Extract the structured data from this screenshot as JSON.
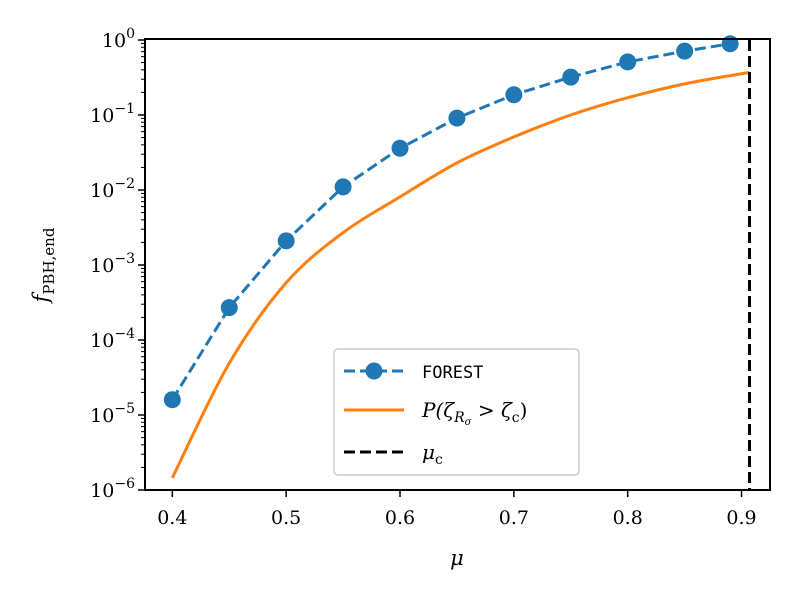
{
  "chart_data": {
    "type": "line",
    "title": "",
    "xlabel": "μ",
    "ylabel": {
      "base": "f",
      "sub": "PBH,end"
    },
    "xlim": [
      0.376,
      0.925
    ],
    "ylim_log10": [
      -6,
      0
    ],
    "yscale": "log",
    "x_ticks": [
      0.4,
      0.5,
      0.6,
      0.7,
      0.8,
      0.9
    ],
    "x_tick_labels": [
      "0.4",
      "0.5",
      "0.6",
      "0.7",
      "0.8",
      "0.9"
    ],
    "y_ticks": [
      {
        "base": "10",
        "exp": "0",
        "log": 0
      },
      {
        "base": "10",
        "exp": "−1",
        "log": -1
      },
      {
        "base": "10",
        "exp": "−2",
        "log": -2
      },
      {
        "base": "10",
        "exp": "−3",
        "log": -3
      },
      {
        "base": "10",
        "exp": "−4",
        "log": -4
      },
      {
        "base": "10",
        "exp": "−5",
        "log": -5
      },
      {
        "base": "10",
        "exp": "−6",
        "log": -6
      }
    ],
    "series": [
      {
        "name": "FOREST",
        "style": "dashed-markers",
        "color": "#1f77b4",
        "x": [
          0.4,
          0.45,
          0.5,
          0.55,
          0.6,
          0.65,
          0.7,
          0.75,
          0.8,
          0.85,
          0.89
        ],
        "y": [
          1.6e-05,
          0.00027,
          0.0021,
          0.011,
          0.036,
          0.091,
          0.186,
          0.32,
          0.51,
          0.71,
          0.89
        ]
      },
      {
        "name": "P(ζ_{Rσ} > ζc)",
        "style": "solid",
        "color": "#ff7f0e",
        "x": [
          0.4,
          0.45,
          0.5,
          0.55,
          0.6,
          0.65,
          0.7,
          0.75,
          0.8,
          0.85,
          0.907
        ],
        "y": [
          1.45e-06,
          4.9e-05,
          0.00058,
          0.0027,
          0.0081,
          0.023,
          0.051,
          0.1,
          0.17,
          0.26,
          0.37
        ]
      },
      {
        "name": "μc",
        "style": "vertical-dashed",
        "color": "#000000",
        "x_value": 0.907
      }
    ],
    "legend": {
      "placement": "lower-center",
      "entries": [
        {
          "label": "FOREST"
        },
        {
          "label_main": "P(ζ",
          "label_sub": "R",
          "label_subsub": "σ",
          "label_rest": " > ζ",
          "label_rest_sub": "c",
          "label_close": ")"
        },
        {
          "label_main": "μ",
          "label_sub": "c"
        }
      ]
    },
    "grid": false
  }
}
